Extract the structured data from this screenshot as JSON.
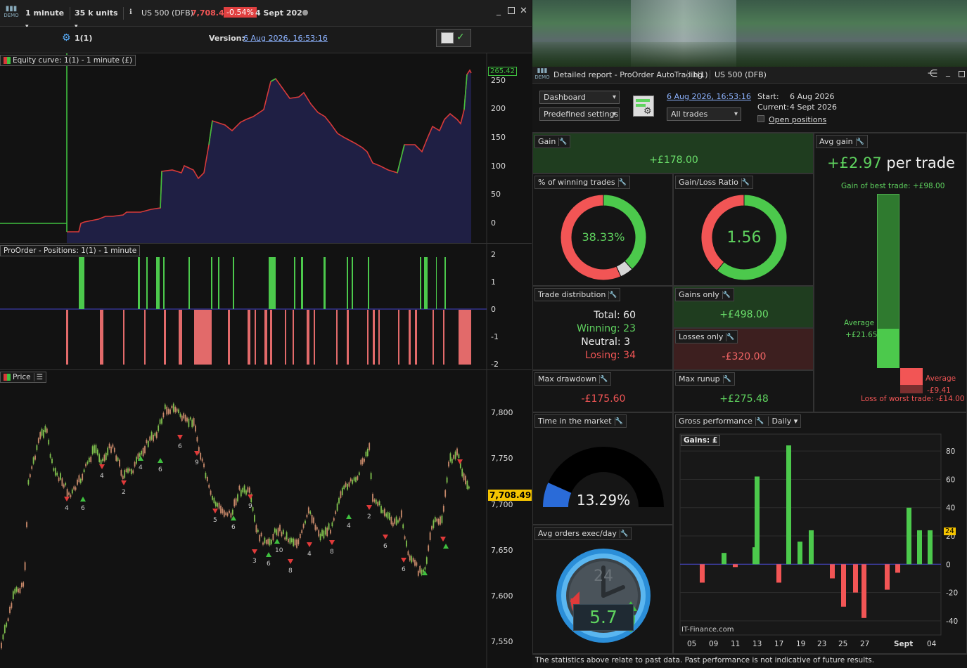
{
  "top_bar": {
    "timeframe": "1 minute",
    "units": "35 k units",
    "instrument": "US 500 (DFB)",
    "price": "7,708.49",
    "change": "-0.54%",
    "date": "4 Sept 2026",
    "demo": "DEMO"
  },
  "subheader": {
    "system": "1(1)",
    "version_label": "Version:",
    "version_date": "6 Aug 2026, 16:53:16"
  },
  "equity_pane": {
    "label": "Equity curve: 1(1) - 1 minute (£)",
    "last_value": "265.42",
    "ticks": [
      "250",
      "200",
      "150",
      "100",
      "50",
      "0"
    ]
  },
  "positions_pane": {
    "label": "ProOrder - Positions: 1(1) - 1 minute",
    "ticks": [
      "2",
      "1",
      "0",
      "-1",
      "-2"
    ]
  },
  "price_pane": {
    "label": "Price",
    "last_price": "7,708.49",
    "ticks": [
      "7,800",
      "7,750",
      "7,700",
      "7,650",
      "7,600",
      "7,550"
    ],
    "trade_markers": [
      "4",
      "6",
      "4",
      "2",
      "4",
      "6",
      "6",
      "9",
      "5",
      "6",
      "9",
      "3",
      "6",
      "10",
      "8",
      "4",
      "8",
      "4",
      "2",
      "6",
      "6"
    ]
  },
  "report": {
    "demo": "DEMO",
    "title": "Detailed report - ProOrder AutoTrading",
    "system": "1(1)",
    "instrument": "US 500 (DFB)",
    "view_select": "Dashboard",
    "settings_select": "Predefined settings",
    "version_link": "6 Aug 2026, 16:53:16",
    "trades_select": "All trades",
    "start_label": "Start:",
    "start_value": "6 Aug 2026",
    "current_label": "Current:",
    "current_value": "4 Sept 2026",
    "open_positions": "Open positions",
    "gain": {
      "title": "Gain",
      "value": "+£178.00"
    },
    "avg_gain": {
      "title": "Avg gain",
      "value": "+£2.97",
      "suffix": "per trade",
      "best": "Gain of best trade: +£98.00",
      "avg_label": "Average",
      "avg_pos": "+£21.65",
      "avg_label2": "Average",
      "avg_neg": "-£9.41",
      "worst": "Loss of worst trade: -£14.00"
    },
    "winning_pct": {
      "title": "% of winning trades",
      "value": "38.33%",
      "winning": 23,
      "neutral": 3,
      "losing": 34
    },
    "gain_loss_ratio": {
      "title": "Gain/Loss Ratio",
      "value": "1.56",
      "gains": 498,
      "losses": 320
    },
    "distribution": {
      "title": "Trade distribution",
      "total_label": "Total:",
      "total": "60",
      "winning_label": "Winning:",
      "winning": "23",
      "neutral_label": "Neutral:",
      "neutral": "3",
      "losing_label": "Losing:",
      "losing": "34"
    },
    "gains_only": {
      "title": "Gains only",
      "value": "+£498.00"
    },
    "losses_only": {
      "title": "Losses only",
      "value": "-£320.00"
    },
    "max_drawdown": {
      "title": "Max drawdown",
      "value": "-£175.60"
    },
    "max_runup": {
      "title": "Max runup",
      "value": "+£275.48"
    },
    "time_in_market": {
      "title": "Time in the market",
      "value": "13.29%",
      "fraction": 0.1329
    },
    "avg_orders": {
      "title": "Avg orders exec/day",
      "value": "5.7",
      "dial": "24"
    },
    "gross_performance": {
      "title": "Gross performance",
      "period": "Daily",
      "chart_label": "Gains: £",
      "watermark": "IT-Finance.com",
      "last_tag": "24"
    },
    "disclaimer": "The statistics above relate to past data. Past performance is not indicative of future results."
  },
  "chart_data": [
    {
      "type": "bar",
      "title": "Gains: £",
      "xlabel": "",
      "ylabel": "",
      "ylim": [
        -50,
        92
      ],
      "yticks": [
        "80",
        "60",
        "40",
        "20",
        "0",
        "-20",
        "-40"
      ],
      "xtick_labels": [
        "05",
        "09",
        "11",
        "13",
        "17",
        "19",
        "23",
        "25",
        "27",
        "Sept",
        "04"
      ],
      "values": [
        -13,
        8,
        -2,
        12,
        62,
        -13,
        84,
        16,
        24,
        -10,
        -30,
        -20,
        -38,
        -18,
        -6,
        40,
        24,
        24
      ]
    },
    {
      "type": "pie",
      "title": "% of winning trades",
      "categories": [
        "Winning",
        "Neutral",
        "Losing"
      ],
      "values": [
        23,
        3,
        34
      ]
    },
    {
      "type": "pie",
      "title": "Gain/Loss Ratio",
      "categories": [
        "Gains",
        "Losses"
      ],
      "values": [
        498,
        320
      ]
    }
  ],
  "colors": {
    "pos": "#4cc94c",
    "neg": "#f25555",
    "bg": "#151515",
    "link": "#8db3ff",
    "price_tag": "#f5c400"
  }
}
